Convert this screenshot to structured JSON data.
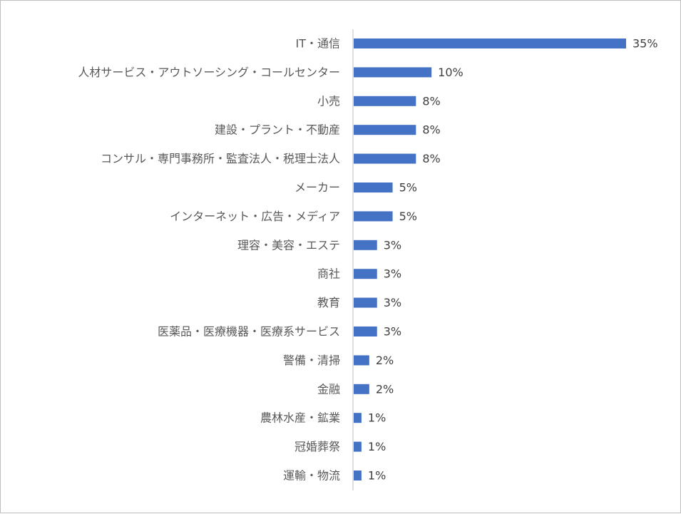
{
  "chart_data": {
    "type": "bar",
    "orientation": "horizontal",
    "categories": [
      "IT・通信",
      "人材サービス・アウトソーシング・コールセンター",
      "小売",
      "建設・プラント・不動産",
      "コンサル・専門事務所・監査法人・税理士法人",
      "メーカー",
      "インターネット・広告・メディア",
      "理容・美容・エステ",
      "商社",
      "教育",
      "医薬品・医療機器・医療系サービス",
      "警備・清掃",
      "金融",
      "農林水産・鉱業",
      "冠婚葬祭",
      "運輸・物流"
    ],
    "values": [
      35,
      10,
      8,
      8,
      8,
      5,
      5,
      3,
      3,
      3,
      3,
      2,
      2,
      1,
      1,
      1
    ],
    "value_labels": [
      "35%",
      "10%",
      "8%",
      "8%",
      "8%",
      "5%",
      "5%",
      "3%",
      "3%",
      "3%",
      "3%",
      "2%",
      "2%",
      "1%",
      "1%",
      "1%"
    ],
    "unit": "%",
    "title": "",
    "xlabel": "",
    "ylabel": "",
    "xlim": [
      0,
      38
    ],
    "grid": false,
    "legend": "none",
    "bar_color": "#4472C4"
  }
}
